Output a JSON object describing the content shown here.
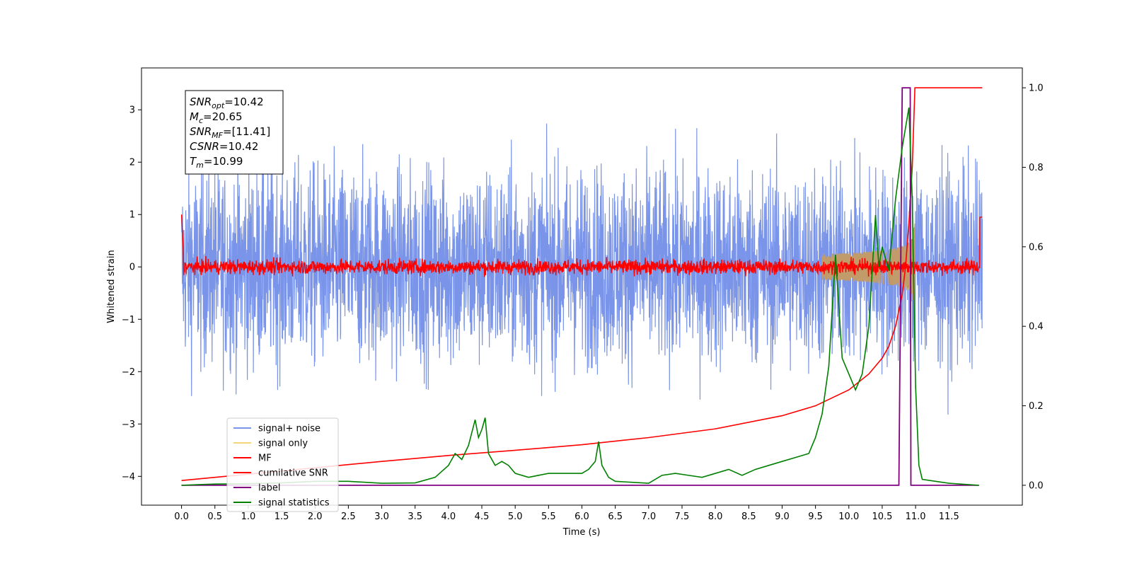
{
  "chart_data": {
    "type": "line",
    "title": "",
    "xlabel": "Time (s)",
    "ylabel": "Whitened strain",
    "xlim": [
      -0.6,
      12.6
    ],
    "ylim": [
      -4.55,
      3.8
    ],
    "y2lim": [
      -0.05,
      1.05
    ],
    "grid": false,
    "legend_position": "lower-left",
    "xticks": [
      0.0,
      0.5,
      1.0,
      1.5,
      2.0,
      2.5,
      3.0,
      3.5,
      4.0,
      4.5,
      5.0,
      5.5,
      6.0,
      6.5,
      7.0,
      7.5,
      8.0,
      8.5,
      9.0,
      9.5,
      10.0,
      10.5,
      11.0,
      11.5
    ],
    "xtick_labels": [
      "0.0",
      "0.5",
      "1.0",
      "1.5",
      "2.0",
      "2.5",
      "3.0",
      "3.5",
      "4.0",
      "4.5",
      "5.0",
      "5.5",
      "6.0",
      "6.5",
      "7.0",
      "7.5",
      "8.0",
      "8.5",
      "9.0",
      "9.5",
      "10.0",
      "10.5",
      "11.0",
      "11.5"
    ],
    "yticks": [
      3,
      2,
      1,
      0,
      -1,
      -2,
      -3,
      -4
    ],
    "ytick_labels": [
      "3",
      "2",
      "1",
      "0",
      "−1",
      "−2",
      "−3",
      "−4"
    ],
    "y2ticks": [
      1.0,
      0.8,
      0.6,
      0.4,
      0.2,
      0.0
    ],
    "y2tick_labels": [
      "1.0",
      "0.8",
      "0.6",
      "0.4",
      "0.2",
      "0.0"
    ],
    "annotation": [
      {
        "base": "SNR",
        "sub": "opt",
        "value": "=10.42"
      },
      {
        "base": "M",
        "sub": "c",
        "value": "=20.65"
      },
      {
        "base": "SNR",
        "sub": "MF",
        "value": "=[11.41]"
      },
      {
        "base": "CSNR",
        "sub": "",
        "value": "=10.42"
      },
      {
        "base": "T",
        "sub": "m",
        "value": "=10.99"
      }
    ],
    "series": [
      {
        "name": "signal+ noise",
        "color": "#7994e8",
        "axis": "left",
        "style": "noise",
        "x_range": [
          0.0,
          12.0
        ],
        "amplitude": 3.5
      },
      {
        "name": "signal only",
        "color": "#f5d57a",
        "axis": "left",
        "style": "chirp",
        "x_range": [
          9.6,
          10.99
        ],
        "amplitude": 0.85
      },
      {
        "name": "MF",
        "color": "#ff0000",
        "axis": "left",
        "style": "noise",
        "x_range": [
          0.0,
          12.0
        ],
        "amplitude": 0.3
      },
      {
        "name": "cumilative SNR",
        "color": "#ff0000",
        "axis": "right",
        "x": [
          0.0,
          1.0,
          2.0,
          3.0,
          4.0,
          5.0,
          6.0,
          7.0,
          8.0,
          9.0,
          9.5,
          10.0,
          10.3,
          10.5,
          10.6,
          10.7,
          10.8,
          10.85,
          10.9,
          10.95,
          10.99,
          11.0,
          12.0
        ],
        "y": [
          0.012,
          0.028,
          0.044,
          0.06,
          0.075,
          0.088,
          0.102,
          0.12,
          0.142,
          0.175,
          0.2,
          0.24,
          0.28,
          0.32,
          0.35,
          0.4,
          0.48,
          0.55,
          0.66,
          0.8,
          1.0,
          1.0,
          1.0
        ]
      },
      {
        "name": "label",
        "color": "#800080",
        "axis": "right",
        "x": [
          0.0,
          10.75,
          10.8,
          10.92,
          10.93,
          11.0,
          11.01,
          11.95
        ],
        "y": [
          0.0,
          0.0,
          1.0,
          1.0,
          0.0,
          0.0,
          0.0,
          0.0
        ]
      },
      {
        "name": "signal statistics",
        "color": "#008000",
        "axis": "right",
        "x": [
          0.0,
          0.3,
          0.5,
          1.0,
          1.5,
          2.0,
          2.5,
          3.0,
          3.5,
          3.8,
          4.0,
          4.1,
          4.2,
          4.3,
          4.4,
          4.45,
          4.5,
          4.55,
          4.6,
          4.7,
          4.8,
          4.9,
          5.0,
          5.2,
          5.5,
          5.8,
          6.0,
          6.1,
          6.2,
          6.25,
          6.3,
          6.4,
          6.5,
          7.0,
          7.2,
          7.4,
          7.6,
          7.8,
          8.0,
          8.2,
          8.4,
          8.6,
          8.8,
          9.0,
          9.2,
          9.4,
          9.5,
          9.6,
          9.7,
          9.8,
          9.9,
          10.0,
          10.1,
          10.2,
          10.3,
          10.4,
          10.45,
          10.5,
          10.6,
          10.7,
          10.8,
          10.9,
          10.95,
          11.0,
          11.05,
          11.1,
          11.3,
          11.5,
          11.95
        ],
        "y": [
          0.0,
          0.002,
          0.003,
          0.004,
          0.006,
          0.01,
          0.01,
          0.005,
          0.006,
          0.02,
          0.05,
          0.08,
          0.065,
          0.1,
          0.165,
          0.12,
          0.14,
          0.17,
          0.08,
          0.05,
          0.06,
          0.05,
          0.03,
          0.02,
          0.03,
          0.03,
          0.03,
          0.04,
          0.06,
          0.11,
          0.05,
          0.02,
          0.01,
          0.005,
          0.025,
          0.03,
          0.025,
          0.02,
          0.03,
          0.04,
          0.025,
          0.04,
          0.05,
          0.06,
          0.07,
          0.08,
          0.12,
          0.18,
          0.3,
          0.58,
          0.32,
          0.28,
          0.24,
          0.28,
          0.4,
          0.68,
          0.55,
          0.6,
          0.54,
          0.72,
          0.85,
          0.95,
          0.72,
          0.25,
          0.05,
          0.015,
          0.01,
          0.005,
          0.0
        ]
      }
    ]
  }
}
